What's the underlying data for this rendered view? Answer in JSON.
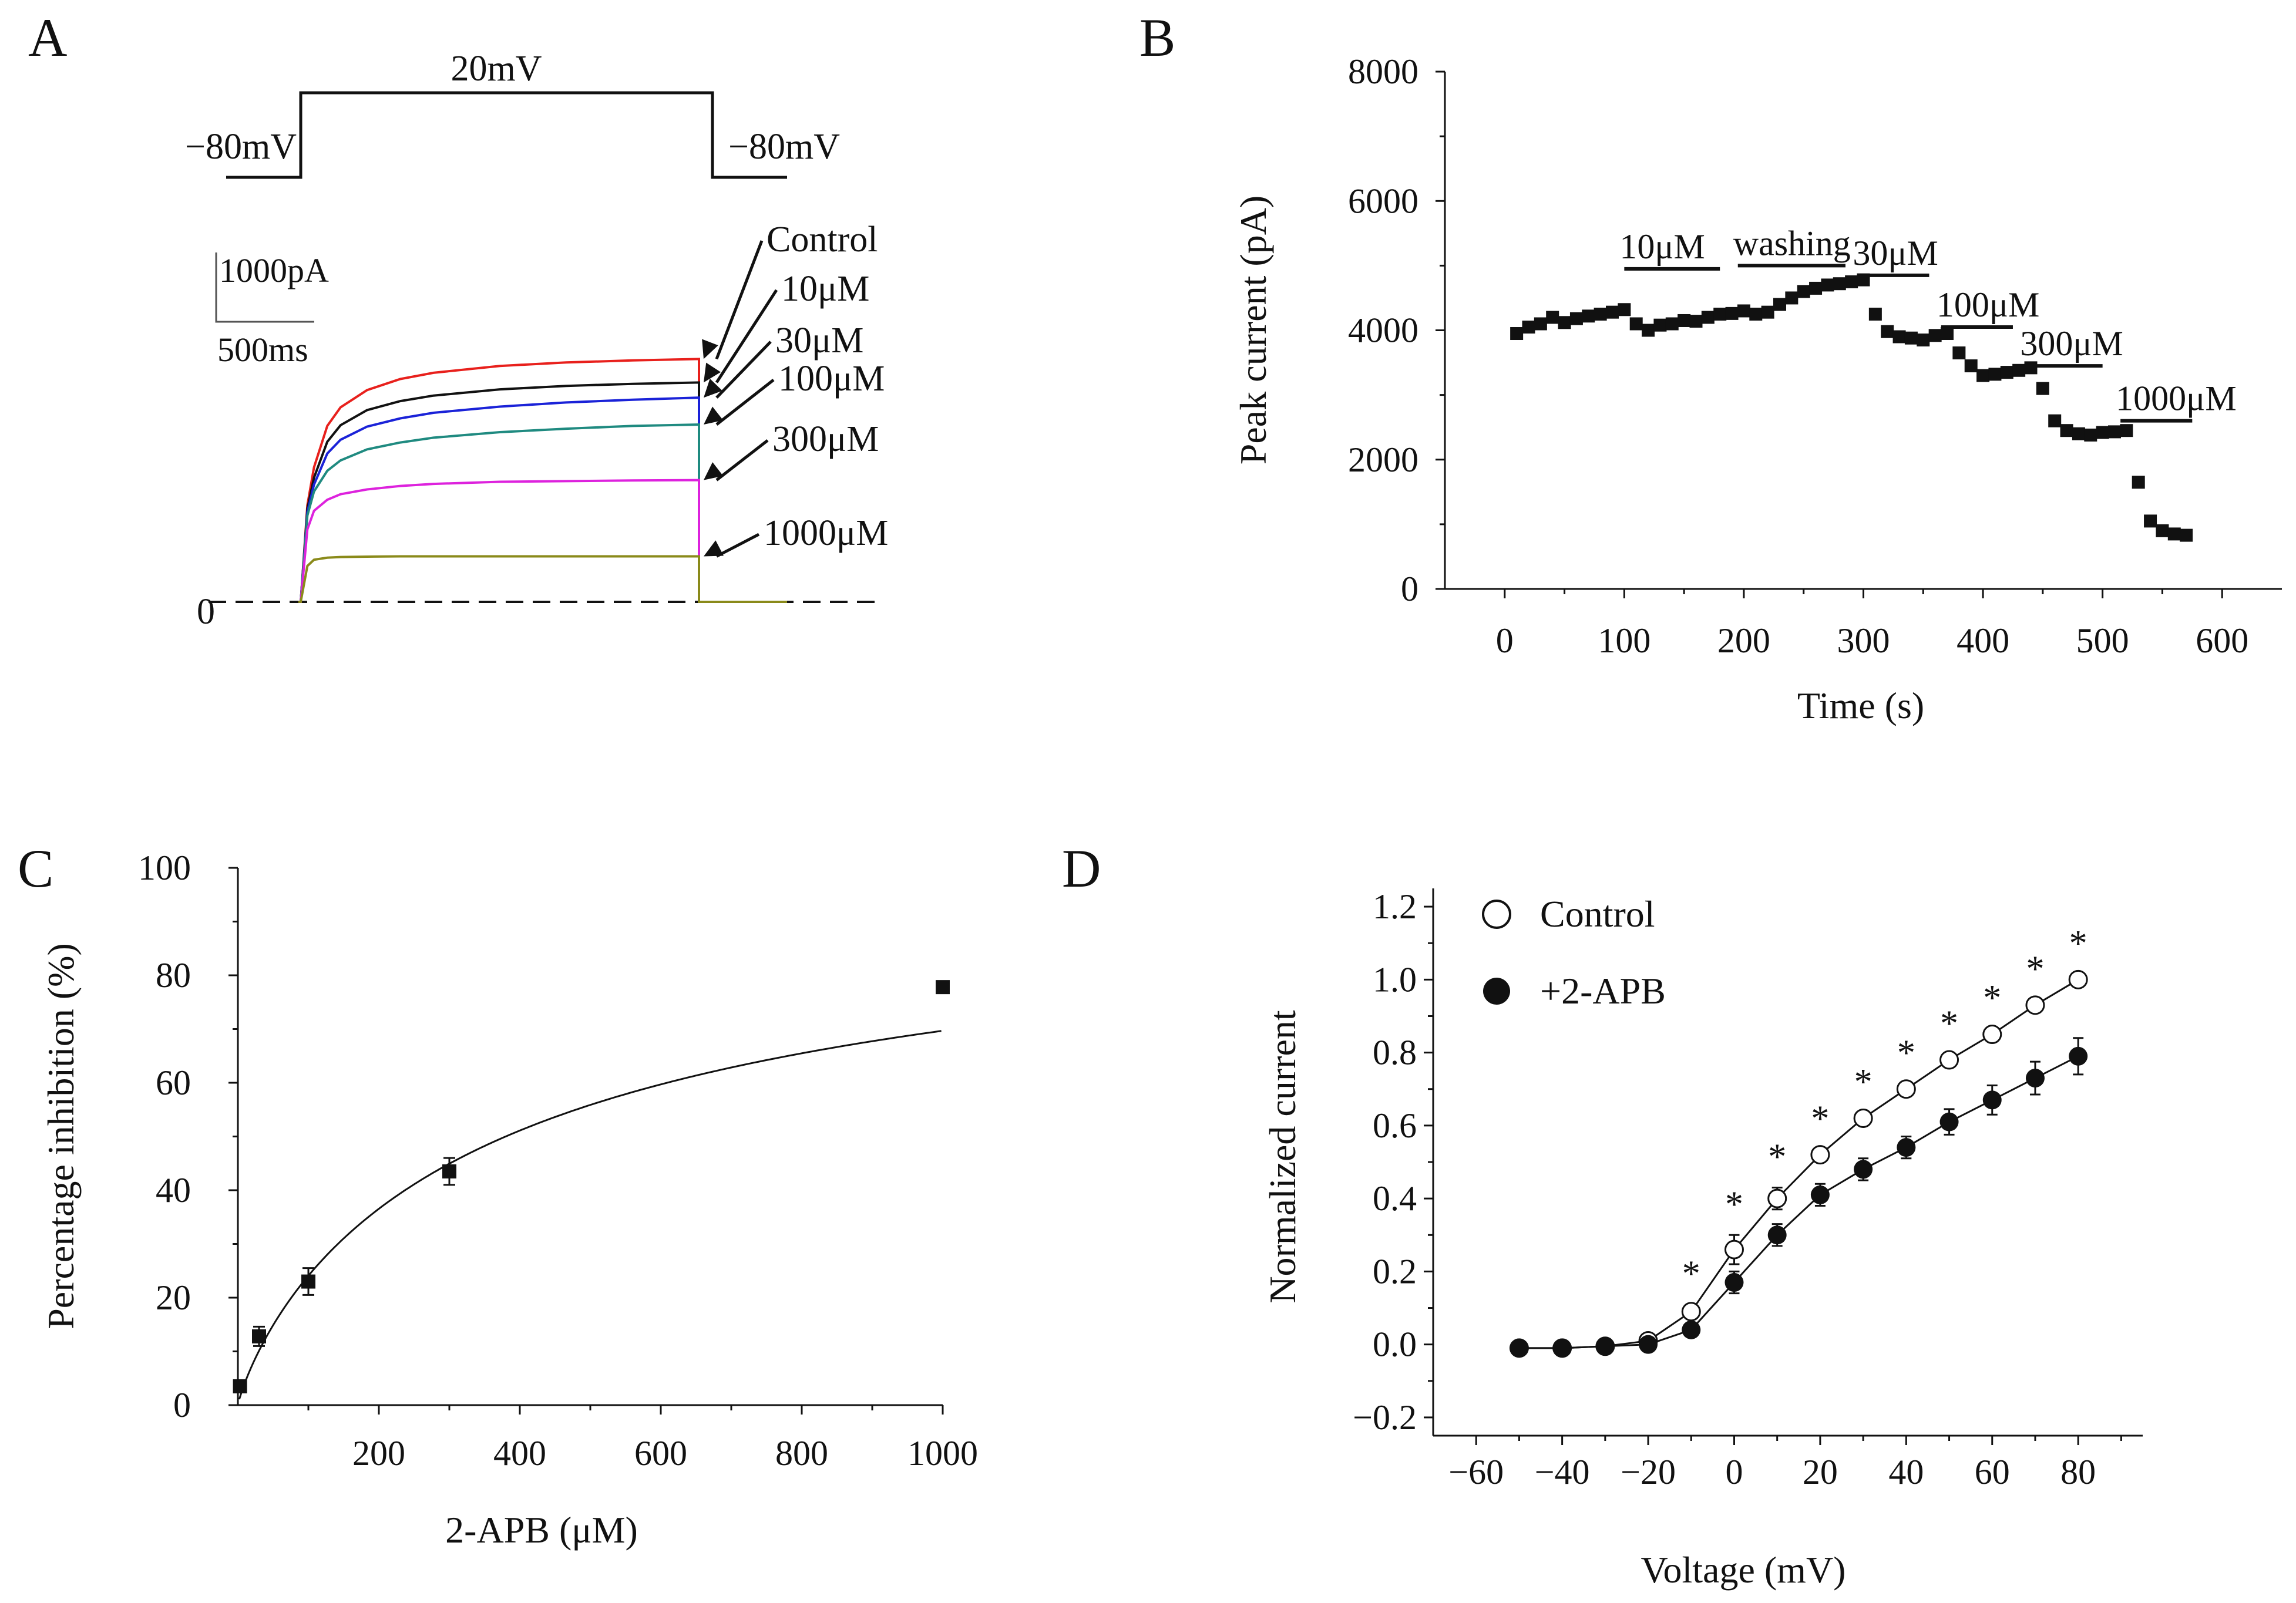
{
  "chart_data": [
    {
      "panel": "A",
      "type": "line",
      "title": "",
      "protocol": {
        "hold_label": "−80mV",
        "step_label": "20mV",
        "return_label": "−80mV"
      },
      "scale_bar": {
        "current": "1000pA",
        "time": "500ms"
      },
      "zero_label": "0",
      "x": [
        0,
        0.05,
        0.1,
        0.2,
        0.3,
        0.5,
        0.75,
        1.0,
        1.5,
        2.0,
        2.5,
        3.0
      ],
      "series": [
        {
          "name": "Control",
          "color": "#e8201c",
          "values": [
            0,
            1400,
            1950,
            2550,
            2820,
            3070,
            3230,
            3320,
            3420,
            3470,
            3500,
            3520
          ]
        },
        {
          "name": "10μM",
          "color": "#111111",
          "values": [
            0,
            1350,
            1800,
            2320,
            2560,
            2780,
            2910,
            2990,
            3080,
            3130,
            3160,
            3180
          ]
        },
        {
          "name": "30μM",
          "color": "#1a22d8",
          "values": [
            0,
            1300,
            1700,
            2150,
            2350,
            2540,
            2660,
            2740,
            2830,
            2890,
            2930,
            2960
          ]
        },
        {
          "name": "100μM",
          "color": "#1f8a80",
          "values": [
            0,
            1250,
            1600,
            1900,
            2050,
            2210,
            2310,
            2380,
            2460,
            2510,
            2550,
            2570
          ]
        },
        {
          "name": "300μM",
          "color": "#dd22dd",
          "values": [
            0,
            1050,
            1320,
            1480,
            1560,
            1630,
            1680,
            1710,
            1740,
            1750,
            1760,
            1765
          ]
        },
        {
          "name": "1000μM",
          "color": "#8a8a1a",
          "values": [
            0,
            520,
            610,
            640,
            650,
            655,
            660,
            660,
            660,
            660,
            660,
            660
          ]
        }
      ]
    },
    {
      "panel": "B",
      "type": "scatter",
      "xlabel": "Time (s)",
      "ylabel": "Peak current  (pA)",
      "xlim": [
        -50,
        650
      ],
      "ylim": [
        0,
        8000
      ],
      "xticks": [
        "0",
        "100",
        "200",
        "300",
        "400",
        "500",
        "600"
      ],
      "yticks": [
        "0",
        "2000",
        "4000",
        "6000",
        "8000"
      ],
      "x": [
        10,
        20,
        30,
        40,
        50,
        60,
        70,
        80,
        90,
        100,
        110,
        120,
        130,
        140,
        150,
        160,
        170,
        180,
        190,
        200,
        210,
        220,
        230,
        240,
        250,
        260,
        270,
        280,
        290,
        300,
        310,
        320,
        330,
        340,
        350,
        360,
        370,
        380,
        390,
        400,
        410,
        420,
        430,
        440,
        450,
        460,
        470,
        480,
        490,
        500,
        510,
        520,
        530,
        540,
        550,
        560,
        570
      ],
      "values": [
        3950,
        4050,
        4100,
        4200,
        4120,
        4180,
        4220,
        4250,
        4280,
        4320,
        4100,
        4000,
        4080,
        4100,
        4150,
        4140,
        4200,
        4250,
        4260,
        4300,
        4250,
        4280,
        4400,
        4500,
        4600,
        4650,
        4700,
        4720,
        4750,
        4780,
        4250,
        3980,
        3900,
        3880,
        3850,
        3920,
        3950,
        3650,
        3450,
        3300,
        3320,
        3350,
        3380,
        3420,
        3100,
        2600,
        2450,
        2400,
        2380,
        2420,
        2430,
        2450,
        1650,
        1050,
        900,
        850,
        830
      ],
      "treatments": [
        {
          "label": "10μM",
          "start": 100,
          "end": 180,
          "level": 4950
        },
        {
          "label": "washing",
          "start": 195,
          "end": 285,
          "level": 5000
        },
        {
          "label": "30μM",
          "start": 295,
          "end": 355,
          "level": 4850
        },
        {
          "label": "100μM",
          "start": 365,
          "end": 425,
          "level": 4050
        },
        {
          "label": "300μM",
          "start": 435,
          "end": 500,
          "level": 3450
        },
        {
          "label": "1000μM",
          "start": 515,
          "end": 575,
          "level": 2600
        }
      ]
    },
    {
      "panel": "C",
      "type": "scatter",
      "xlabel": "2-APB (μM)",
      "ylabel": "Percentage inhibition (%)",
      "xlim": [
        0,
        1000
      ],
      "ylim": [
        0,
        100
      ],
      "xticks": [
        "200",
        "400",
        "600",
        "800",
        "1000"
      ],
      "yticks": [
        "0",
        "20",
        "40",
        "60",
        "80",
        "100"
      ],
      "x": [
        3,
        30,
        100,
        300,
        1000
      ],
      "values": [
        3.5,
        12.8,
        23.0,
        43.5,
        77.8
      ],
      "errors": [
        1.0,
        1.8,
        2.5,
        2.5,
        0.6
      ],
      "fit": "Hill fit"
    },
    {
      "panel": "D",
      "type": "line",
      "xlabel": "Voltage (mV)",
      "ylabel": "Normalized current",
      "xlim": [
        -70,
        95
      ],
      "ylim": [
        -0.25,
        1.25
      ],
      "xticks": [
        "−60",
        "−40",
        "−20",
        "0",
        "20",
        "40",
        "60",
        "80"
      ],
      "yticks": [
        "−0.2",
        "0.0",
        "0.2",
        "0.4",
        "0.6",
        "0.8",
        "1.0",
        "1.2"
      ],
      "x": [
        -50,
        -40,
        -30,
        -20,
        -10,
        0,
        10,
        20,
        30,
        40,
        50,
        60,
        70,
        80
      ],
      "series": [
        {
          "name": "Control",
          "marker": "open",
          "values": [
            -0.01,
            -0.01,
            -0.005,
            0.01,
            0.09,
            0.26,
            0.4,
            0.52,
            0.62,
            0.7,
            0.78,
            0.85,
            0.93,
            1.0
          ],
          "errors": [
            0.005,
            0.005,
            0.005,
            0.01,
            0.02,
            0.04,
            0.03,
            0.015,
            0.015,
            0.015,
            0.015,
            0.015,
            0.015,
            0.015
          ]
        },
        {
          "name": "+2-APB",
          "marker": "filled",
          "values": [
            -0.01,
            -0.01,
            -0.005,
            0.0,
            0.04,
            0.17,
            0.3,
            0.41,
            0.48,
            0.54,
            0.61,
            0.67,
            0.73,
            0.79
          ],
          "errors": [
            0.005,
            0.005,
            0.005,
            0.01,
            0.015,
            0.03,
            0.03,
            0.03,
            0.03,
            0.03,
            0.035,
            0.04,
            0.045,
            0.05
          ]
        }
      ],
      "significance_marker": "*",
      "significant_at": [
        -10,
        0,
        10,
        20,
        30,
        40,
        50,
        60,
        70,
        80
      ]
    }
  ],
  "panels": {
    "A": {
      "label": "A"
    },
    "B": {
      "label": "B"
    },
    "C": {
      "label": "C"
    },
    "D": {
      "label": "D"
    }
  }
}
